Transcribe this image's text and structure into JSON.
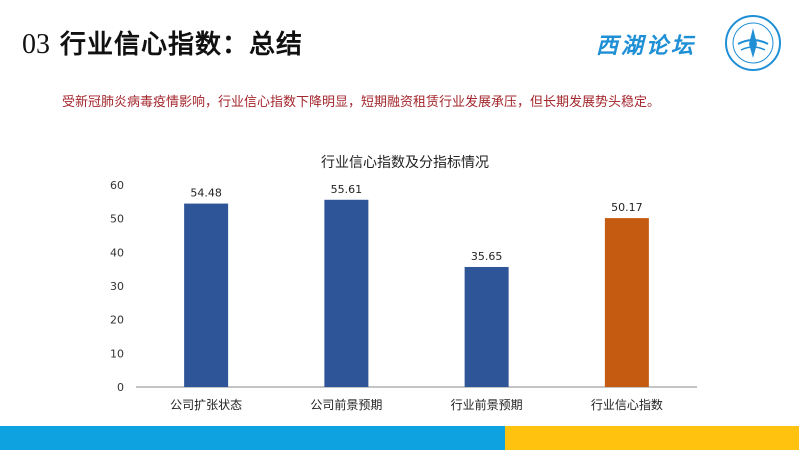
{
  "header": {
    "section_number": "03",
    "title": "行业信心指数：总结",
    "logo_text": "西湖论坛"
  },
  "summary_text": "受新冠肺炎病毒疫情影响，行业信心指数下降明显，短期融资租赁行业发展承压，但长期发展势头稳定。",
  "colors": {
    "title": "#111111",
    "summary": "#a3262c",
    "bar_primary": "#2e5597",
    "bar_highlight": "#c55a11",
    "footer_blue": "#0ea3e0",
    "footer_yellow": "#ffc20e",
    "logo": "#1f8fd6"
  },
  "chart_data": {
    "type": "bar",
    "title": "行业信心指数及分指标情况",
    "categories": [
      "公司扩张状态",
      "公司前景预期",
      "行业前景预期",
      "行业信心指数"
    ],
    "values": [
      54.48,
      55.61,
      35.65,
      50.17
    ],
    "data_labels": [
      "54.48",
      "55.61",
      "35.65",
      "50.17"
    ],
    "highlight_index": 3,
    "ylim": [
      0,
      60
    ],
    "yticks": [
      "0",
      "10",
      "20",
      "30",
      "40",
      "50",
      "60"
    ],
    "xlabel": "",
    "ylabel": "",
    "grid": false,
    "legend": "none"
  }
}
